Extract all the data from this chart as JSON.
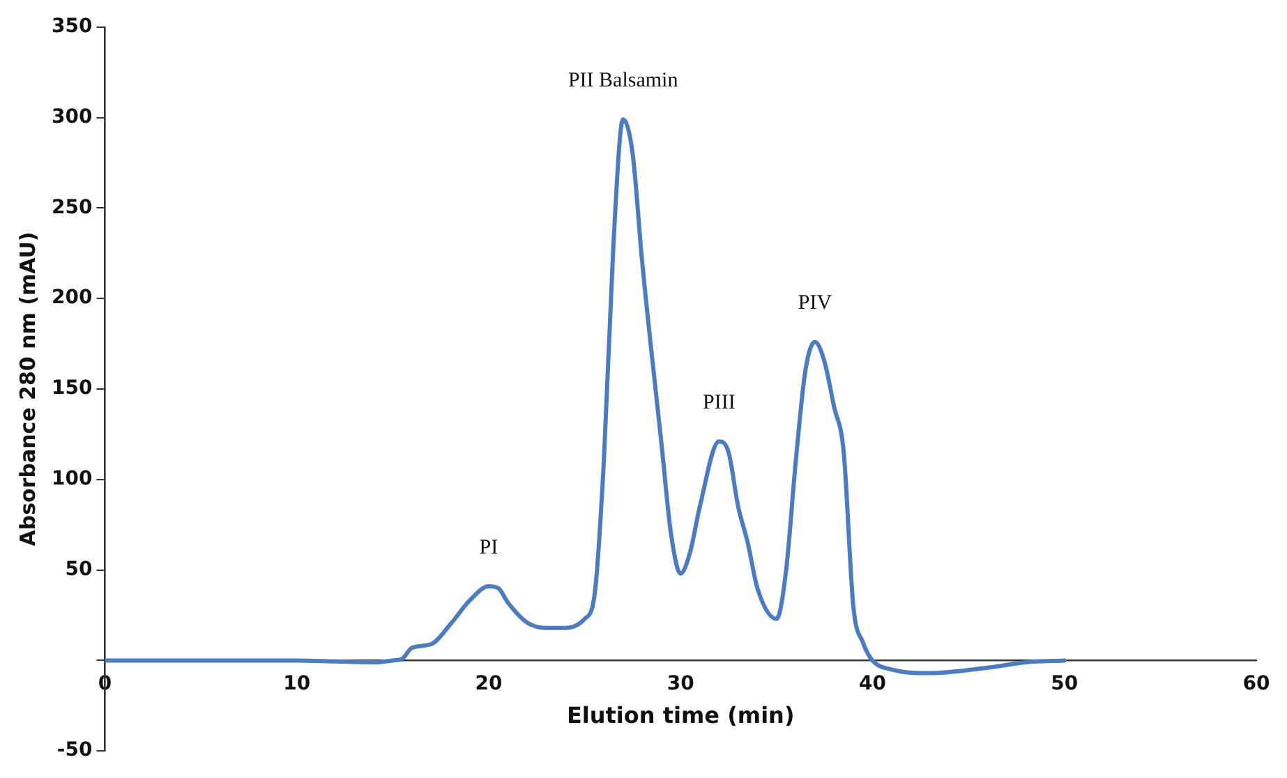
{
  "chart_data": {
    "type": "line",
    "xlabel": "Elution time (min)",
    "ylabel": "Absorbance 280 nm (mAU)",
    "xlim": [
      0,
      60
    ],
    "xticks": [
      0,
      10,
      20,
      30,
      40,
      50,
      60
    ],
    "ylim": [
      -50,
      350
    ],
    "yticks": [
      -50,
      {
        "value": 0,
        "label": null
      },
      50,
      100,
      150,
      200,
      250,
      300,
      350
    ],
    "grid": false,
    "legend": false,
    "marker": "none",
    "line_style": "solid",
    "series": [
      {
        "color": "#4a7cc4",
        "x": [
          0,
          5,
          10,
          12,
          14,
          15,
          15.5,
          16,
          17,
          18,
          19,
          20,
          20.5,
          21,
          22,
          23,
          24,
          25,
          25.5,
          26,
          26.5,
          27,
          27.5,
          28,
          29,
          29.5,
          30,
          30.5,
          31,
          32,
          32.5,
          33,
          33.5,
          34,
          35,
          35.5,
          36,
          36.5,
          37,
          37.5,
          38,
          38.5,
          39,
          39.5,
          40,
          41,
          43,
          46,
          48,
          50
        ],
        "values": [
          0,
          0,
          0,
          -0.5,
          -1,
          0,
          1,
          7,
          9,
          20,
          33,
          41,
          40,
          32,
          21,
          18,
          18,
          23,
          35,
          110,
          230,
          299,
          280,
          220,
          120,
          70,
          48,
          60,
          85,
          121,
          115,
          85,
          65,
          40,
          23,
          50,
          110,
          160,
          176,
          165,
          140,
          115,
          30,
          10,
          0,
          -5,
          -7,
          -4,
          -1,
          0
        ]
      }
    ],
    "annotations": [
      {
        "text": "PI",
        "x": 20,
        "y": 41
      },
      {
        "text": "PII Balsamin",
        "x": 27,
        "y": 299
      },
      {
        "text": "PIII",
        "x": 32,
        "y": 121
      },
      {
        "text": "PIV",
        "x": 37,
        "y": 176
      }
    ]
  }
}
